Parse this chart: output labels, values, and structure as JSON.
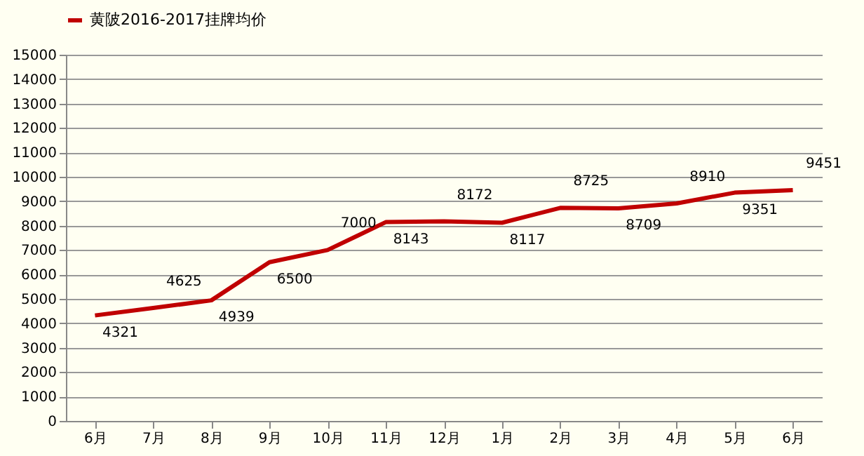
{
  "chart_data": {
    "type": "line",
    "categories": [
      "6月",
      "7月",
      "8月",
      "9月",
      "10月",
      "11月",
      "12月",
      "1月",
      "2月",
      "3月",
      "4月",
      "5月",
      "6月"
    ],
    "series": [
      {
        "name": "黄陂2016-2017挂牌均价",
        "color": "#c00000",
        "values": [
          4321,
          4625,
          4939,
          6500,
          7000,
          8143,
          8172,
          8117,
          8725,
          8709,
          8910,
          9351,
          9451
        ]
      }
    ],
    "ylim": [
      0,
      15000
    ],
    "yticks": [
      0,
      1000,
      2000,
      3000,
      4000,
      5000,
      6000,
      7000,
      8000,
      9000,
      10000,
      11000,
      12000,
      13000,
      14000,
      15000
    ],
    "grid": "y",
    "legend": "top",
    "data_labels": true,
    "marker": "none",
    "line_style": "solid"
  }
}
